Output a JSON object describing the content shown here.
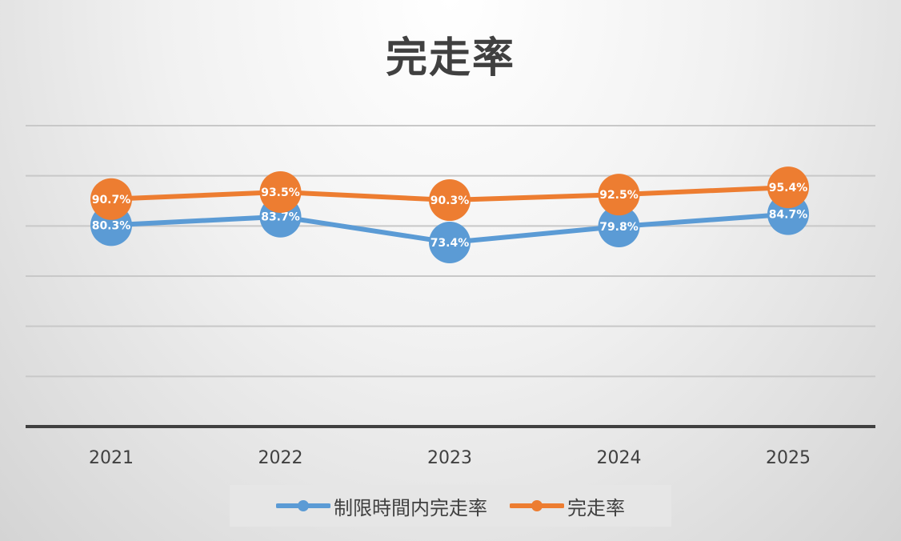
{
  "chart_data": {
    "type": "line",
    "title": "完走率",
    "categories": [
      "2021",
      "2022",
      "2023",
      "2024",
      "2025"
    ],
    "series": [
      {
        "name": "制限時間内完走率",
        "values": [
          80.3,
          83.7,
          73.4,
          79.8,
          84.7
        ],
        "labels": [
          "80.3%",
          "83.7%",
          "73.4%",
          "79.8%",
          "84.7%"
        ],
        "color": "#5b9bd5"
      },
      {
        "name": "完走率",
        "values": [
          90.7,
          93.5,
          90.3,
          92.5,
          95.4
        ],
        "labels": [
          "90.7%",
          "93.5%",
          "90.3%",
          "92.5%",
          "95.4%"
        ],
        "color": "#ed7d31"
      }
    ],
    "ylim": [
      0,
      120
    ],
    "y_step": 20,
    "grid": true,
    "legend": "bottom",
    "axis_line_color": "#404040",
    "grid_color": "#c8c8c8"
  }
}
